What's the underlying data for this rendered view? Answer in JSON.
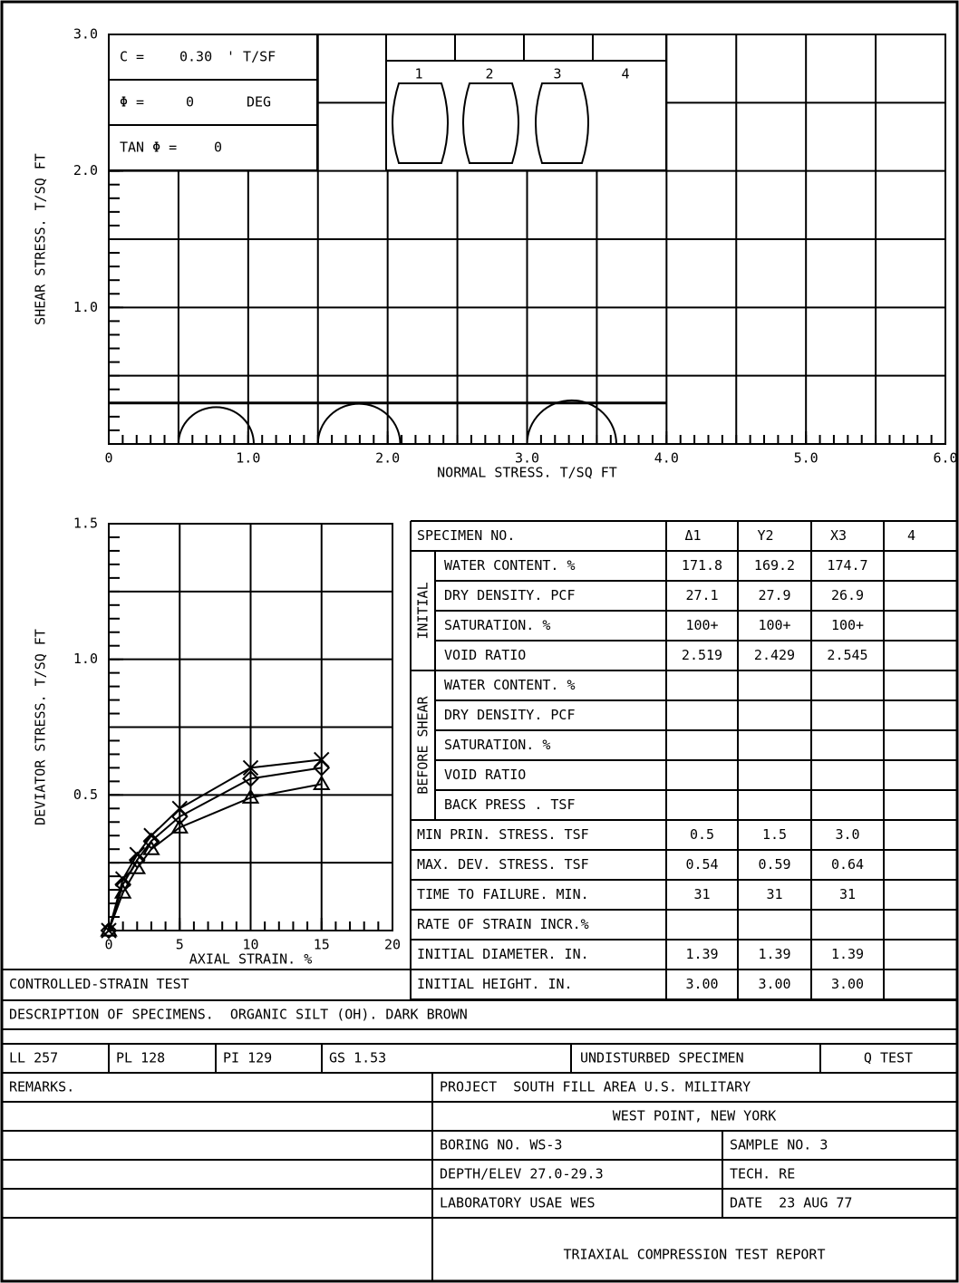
{
  "chart_data": [
    {
      "type": "mohr",
      "xlabel": "NORMAL STRESS. T/SQ FT",
      "ylabel": "SHEAR STRESS. T/SQ FT",
      "xlim": [
        0,
        6
      ],
      "xticks": [
        0,
        {
          "value": 1,
          "label": "1.0"
        },
        {
          "value": 2,
          "label": "2.0"
        },
        {
          "value": 3,
          "label": "3.0"
        },
        {
          "value": 4,
          "label": "4.0"
        },
        {
          "value": 5,
          "label": "5.0"
        },
        {
          "value": 6,
          "label": "6.0"
        }
      ],
      "ylim": [
        0,
        3
      ],
      "yticks": [
        {
          "value": 1,
          "label": "1.0"
        },
        {
          "value": 2,
          "label": "2.0"
        },
        {
          "value": 3,
          "label": "3.0"
        }
      ],
      "grid": true,
      "xgrid_step": 0.5,
      "ygrid_step": 0.5,
      "xminor_step": 0.1,
      "yminor_step": 0.1,
      "color": "#000000",
      "annotations": {
        "c": {
          "symbol": "C =",
          "value": 0.3,
          "value_label": "0.30",
          "unit": "' T/SF"
        },
        "phi": {
          "symbol": "Φ =",
          "value": 0,
          "unit": "DEG"
        },
        "tan_phi": {
          "symbol": "TAN Φ =",
          "value": 0
        }
      }
    },
    {
      "type": "line",
      "xlabel": "AXIAL STRAIN. %",
      "ylabel": "DEVIATOR STRESS. T/SQ FT",
      "xlim": [
        0,
        20
      ],
      "xticks": [
        0,
        5,
        10,
        15,
        20
      ],
      "ylim": [
        0,
        1.5
      ],
      "yticks": [
        0.5,
        {
          "value": 1,
          "label": "1.0"
        },
        1.5
      ],
      "grid": true,
      "xgrid_step": 5,
      "ygrid_step": 0.25,
      "xminor_step": 1,
      "yminor_step": 0.05,
      "x": [
        0,
        1,
        2,
        3,
        5,
        10,
        15
      ],
      "series": [
        {
          "marker": "triangle",
          "color": "#000000",
          "values": [
            0,
            0.14,
            0.23,
            0.3,
            0.38,
            0.49,
            0.54
          ]
        },
        {
          "marker": "diamond",
          "color": "#000000",
          "values": [
            0,
            0.17,
            0.26,
            0.33,
            0.42,
            0.56,
            0.6
          ]
        },
        {
          "marker": "x",
          "color": "#000000",
          "values": [
            0,
            0.19,
            0.28,
            0.35,
            0.45,
            0.6,
            0.63
          ]
        }
      ]
    }
  ],
  "specimen_sketch": [
    "1",
    "2",
    "3",
    "4"
  ],
  "table": {
    "header": {
      "label": "SPECIMEN NO.",
      "specimens": [
        "Δ1",
        "Y2",
        "X3",
        "4"
      ]
    },
    "initial": {
      "label": "INITIAL",
      "rows": [
        {
          "label": "WATER CONTENT. %",
          "values": [
            "171.8",
            "169.2",
            "174.7"
          ]
        },
        {
          "label": "DRY DENSITY. PCF",
          "values": [
            "27.1",
            "27.9",
            "26.9"
          ]
        },
        {
          "label": "SATURATION. %",
          "values": [
            "100+",
            "100+",
            "100+"
          ]
        },
        {
          "label": "VOID RATIO",
          "values": [
            "2.519",
            "2.429",
            "2.545"
          ]
        }
      ]
    },
    "before_shear": {
      "label": "BEFORE SHEAR",
      "rows": [
        {
          "label": "WATER CONTENT. %"
        },
        {
          "label": "DRY DENSITY. PCF"
        },
        {
          "label": "SATURATION. %"
        },
        {
          "label": "VOID RATIO"
        },
        {
          "label": "BACK PRESS . TSF"
        }
      ]
    },
    "rows": [
      {
        "label": "MIN PRIN. STRESS. TSF",
        "values": [
          "0.5",
          "1.5",
          "3.0"
        ]
      },
      {
        "label": "MAX. DEV. STRESS. TSF",
        "values": [
          "0.54",
          "0.59",
          "0.64"
        ]
      },
      {
        "label": "TIME TO FAILURE. MIN.",
        "values": [
          "31",
          "31",
          "31"
        ]
      },
      {
        "label": "RATE OF STRAIN INCR.%"
      },
      {
        "label": "INITIAL DIAMETER. IN.",
        "values": [
          "1.39",
          "1.39",
          "1.39"
        ]
      },
      {
        "label": "INITIAL HEIGHT. IN.",
        "values": [
          "3.00",
          "3.00",
          "3.00"
        ]
      }
    ]
  },
  "test_type": "CONTROLLED-STRAIN TEST",
  "description": "DESCRIPTION OF SPECIMENS.  ORGANIC SILT (OH). DARK BROWN",
  "limits": [
    "LL 257",
    "PL 128",
    "PI 129",
    "GS 1.53"
  ],
  "specimen_condition": "UNDISTURBED SPECIMEN",
  "test": "Q TEST",
  "remarks": "REMARKS.",
  "project": "PROJECT  SOUTH FILL AREA U.S. MILITARY",
  "location": "WEST POINT, NEW YORK",
  "boring": "BORING NO. WS-3",
  "sample": "SAMPLE NO. 3",
  "depth": "DEPTH/ELEV 27.0-29.3",
  "tech": "TECH. RE",
  "laboratory": "LABORATORY USAE WES",
  "date": "DATE  23 AUG 77",
  "report_title": "TRIAXIAL COMPRESSION TEST REPORT"
}
